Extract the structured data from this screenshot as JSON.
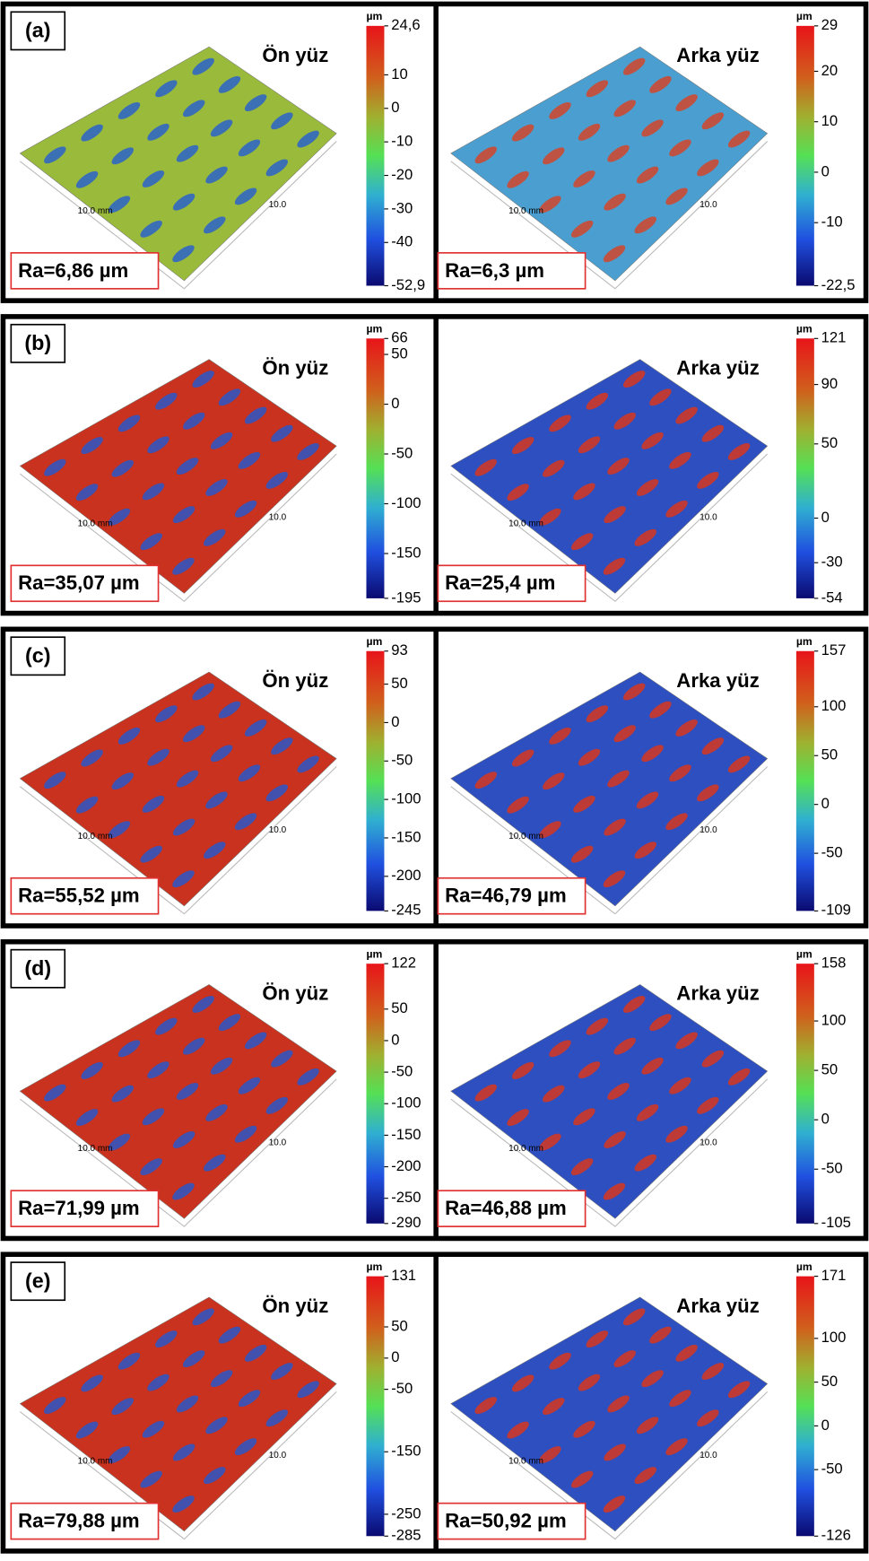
{
  "rows": [
    {
      "label": "(a)",
      "panels": [
        {
          "title": "Ön yüz",
          "unit": "µm",
          "lim": [
            -52.9,
            24.6
          ],
          "ticks": [
            {
              "value": 24.6,
              "label": "24,6"
            },
            10,
            0,
            -10,
            -20,
            -30,
            -40,
            {
              "value": -52.9,
              "label": "-52,9"
            }
          ],
          "ra": "Ra=6,86 µm",
          "x_label": "10.0 mm",
          "y_label": "10.0",
          "colors": [
            "#9aba3c",
            "#2b63c9"
          ]
        },
        {
          "title": "Arka yüz",
          "unit": "µm",
          "lim": [
            -22.5,
            29
          ],
          "ticks": [
            29,
            20,
            10,
            0,
            -10,
            {
              "value": -22.5,
              "label": "-22,5"
            }
          ],
          "ra": "Ra=6,3 µm",
          "x_label": "10.0 mm",
          "y_label": "10.0",
          "colors": [
            "#4a9fd0",
            "#d2452a"
          ]
        }
      ]
    },
    {
      "label": "(b)",
      "panels": [
        {
          "title": "Ön yüz",
          "unit": "µm",
          "lim": [
            -195,
            66
          ],
          "ticks": [
            66,
            50,
            0,
            -50,
            -100,
            -150,
            -195
          ],
          "ra": "Ra=35,07 µm",
          "x_label": "10.0 mm",
          "y_label": "10.0",
          "colors": [
            "#c8321e",
            "#2a56c8"
          ]
        },
        {
          "title": "Arka yüz",
          "unit": "µm",
          "lim": [
            -54,
            121
          ],
          "ticks": [
            121,
            90,
            50,
            0,
            -30,
            -54
          ],
          "ra": "Ra=25,4 µm",
          "x_label": "10.0 mm",
          "y_label": "10.0",
          "colors": [
            "#2d4fc0",
            "#d8361f"
          ]
        }
      ]
    },
    {
      "label": "(c)",
      "panels": [
        {
          "title": "Ön yüz",
          "unit": "µm",
          "lim": [
            -245,
            93
          ],
          "ticks": [
            93,
            50,
            0,
            -50,
            -100,
            -150,
            -200,
            -245
          ],
          "ra": "Ra=55,52 µm",
          "x_label": "10.0 mm",
          "y_label": "10.0",
          "colors": [
            "#c8321e",
            "#2a56c8"
          ]
        },
        {
          "title": "Arka yüz",
          "unit": "µm",
          "lim": [
            -109,
            157
          ],
          "ticks": [
            157,
            100,
            50,
            0,
            -50,
            -109
          ],
          "ra": "Ra=46,79 µm",
          "x_label": "10.0 mm",
          "y_label": "10.0",
          "colors": [
            "#2d4fc0",
            "#d8361f"
          ]
        }
      ]
    },
    {
      "label": "(d)",
      "panels": [
        {
          "title": "Ön yüz",
          "unit": "µm",
          "lim": [
            -290,
            122
          ],
          "ticks": [
            122,
            50,
            0,
            -50,
            -100,
            -150,
            -200,
            -250,
            -290
          ],
          "ra": "Ra=71,99 µm",
          "x_label": "10.0 mm",
          "y_label": "10.0",
          "colors": [
            "#c8321e",
            "#2a56c8"
          ]
        },
        {
          "title": "Arka yüz",
          "unit": "µm",
          "lim": [
            -105,
            158
          ],
          "ticks": [
            158,
            100,
            50,
            0,
            -50,
            -105
          ],
          "ra": "Ra=46,88 µm",
          "x_label": "10.0 mm",
          "y_label": "10.0",
          "colors": [
            "#2d4fc0",
            "#d8361f"
          ]
        }
      ]
    },
    {
      "label": "(e)",
      "panels": [
        {
          "title": "Ön yüz",
          "unit": "µm",
          "lim": [
            -285,
            131
          ],
          "ticks": [
            131,
            50,
            0,
            -50,
            -150,
            -250,
            -285
          ],
          "ra": "Ra=79,88 µm",
          "x_label": "10.0 mm",
          "y_label": "10.0",
          "colors": [
            "#c8321e",
            "#2a56c8"
          ]
        },
        {
          "title": "Arka yüz",
          "unit": "µm",
          "lim": [
            -126,
            171
          ],
          "ticks": [
            171,
            100,
            50,
            0,
            -50,
            -126
          ],
          "ra": "Ra=50,92 µm",
          "x_label": "10.0 mm",
          "y_label": "10.0",
          "colors": [
            "#2d4fc0",
            "#d8361f"
          ]
        }
      ]
    }
  ]
}
